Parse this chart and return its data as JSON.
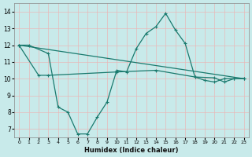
{
  "background_color": "#c8eaea",
  "grid_color": "#d4d4d4",
  "line_color": "#1a7a6e",
  "xlabel": "Humidex (Indice chaleur)",
  "ylim": [
    6.5,
    14.5
  ],
  "xlim": [
    -0.5,
    23.5
  ],
  "yticks": [
    7,
    8,
    9,
    10,
    11,
    12,
    13,
    14
  ],
  "xticks": [
    0,
    1,
    2,
    3,
    4,
    5,
    6,
    7,
    8,
    9,
    10,
    11,
    12,
    13,
    14,
    15,
    16,
    17,
    18,
    19,
    20,
    21,
    22,
    23
  ],
  "line1_x": [
    0,
    1,
    3,
    4,
    5,
    6,
    7,
    8,
    9,
    10,
    11,
    12,
    13,
    14,
    15,
    16,
    17,
    18,
    19,
    20,
    21,
    22,
    23
  ],
  "line1_y": [
    12.0,
    12.0,
    11.5,
    8.3,
    8.0,
    6.7,
    6.7,
    7.7,
    8.6,
    10.5,
    10.4,
    11.8,
    12.7,
    13.1,
    13.9,
    12.9,
    12.1,
    10.1,
    9.9,
    9.8,
    10.0,
    10.0,
    10.0
  ],
  "line2_x": [
    0,
    2,
    3,
    10,
    14,
    18,
    20,
    21,
    22,
    23
  ],
  "line2_y": [
    12.0,
    10.2,
    10.2,
    10.4,
    10.5,
    10.1,
    10.05,
    9.8,
    10.0,
    10.0
  ],
  "line3_x": [
    0,
    23
  ],
  "line3_y": [
    12.0,
    10.0
  ]
}
